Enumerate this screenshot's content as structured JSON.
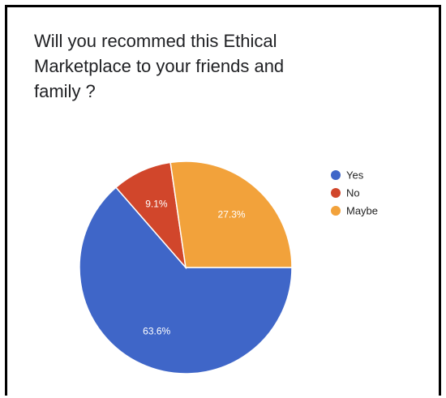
{
  "chart_data": {
    "type": "pie",
    "title_lines": [
      "Will you recommed this Ethical",
      "Marketplace to your friends and",
      "family ?"
    ],
    "categories": [
      "Yes",
      "No",
      "Maybe"
    ],
    "values": [
      63.6,
      9.1,
      27.3
    ],
    "slice_labels": [
      "63.6%",
      "9.1%",
      "27.3%"
    ],
    "colors": [
      "#3f66c8",
      "#d1462b",
      "#f2a23b"
    ],
    "legend": {
      "placement": "right",
      "entries": [
        "Yes",
        "No",
        "Maybe"
      ]
    }
  }
}
